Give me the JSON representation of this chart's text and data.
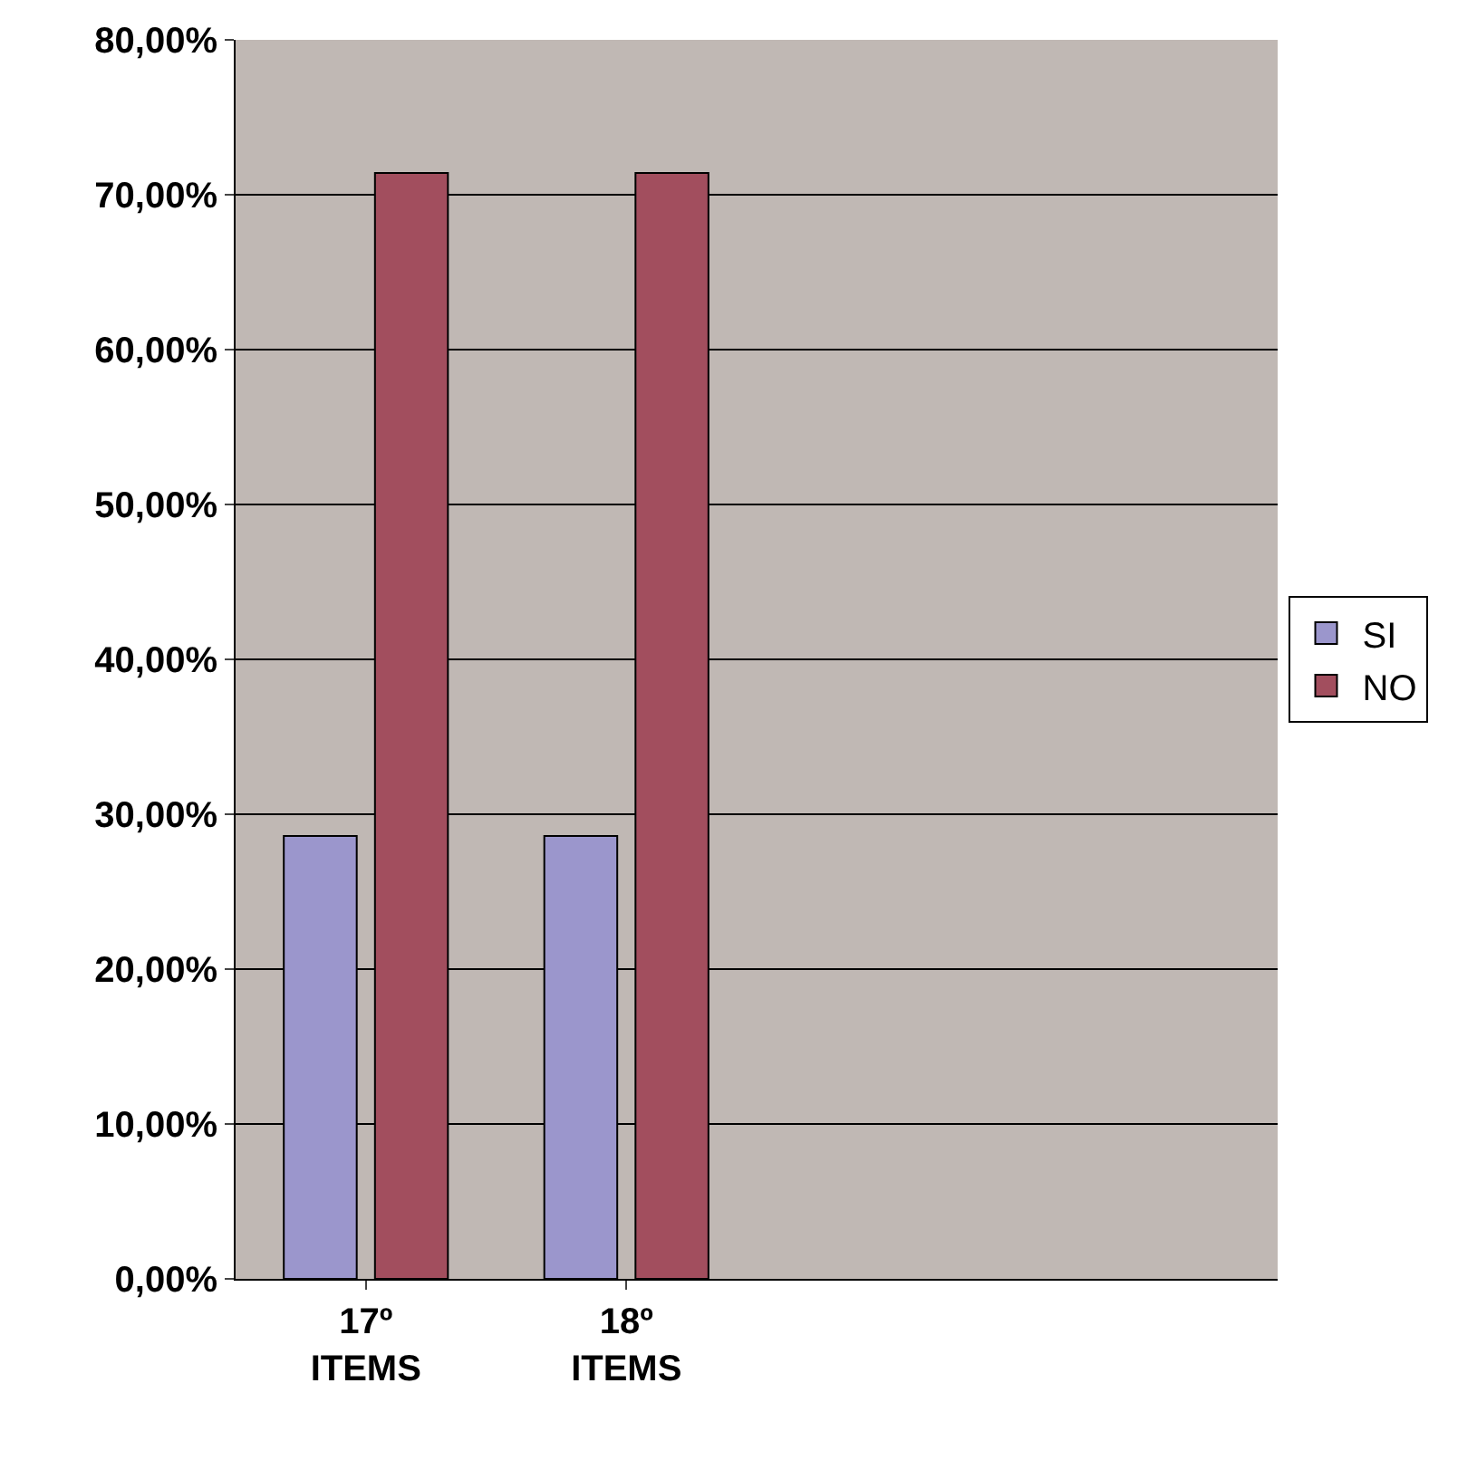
{
  "chart_data": {
    "type": "bar",
    "categories": [
      "17º ITEMS",
      "18º ITEMS",
      null,
      null
    ],
    "series": [
      {
        "name": "SI",
        "color": "#9b96cc",
        "values": [
          28.6,
          28.6,
          null,
          null
        ]
      },
      {
        "name": "NO",
        "color": "#a24e5e",
        "values": [
          71.4,
          71.4,
          null,
          null
        ]
      }
    ],
    "ylim": [
      0,
      80
    ],
    "yticks": [
      {
        "value": 0,
        "label": "0,00%"
      },
      {
        "value": 10,
        "label": "10,00%"
      },
      {
        "value": 20,
        "label": "20,00%"
      },
      {
        "value": 30,
        "label": "30,00%"
      },
      {
        "value": 40,
        "label": "40,00%"
      },
      {
        "value": 50,
        "label": "50,00%"
      },
      {
        "value": 60,
        "label": "60,00%"
      },
      {
        "value": 70,
        "label": "70,00%"
      },
      {
        "value": 80,
        "label": "80,00%"
      }
    ],
    "grid": "y",
    "legend": "right"
  }
}
